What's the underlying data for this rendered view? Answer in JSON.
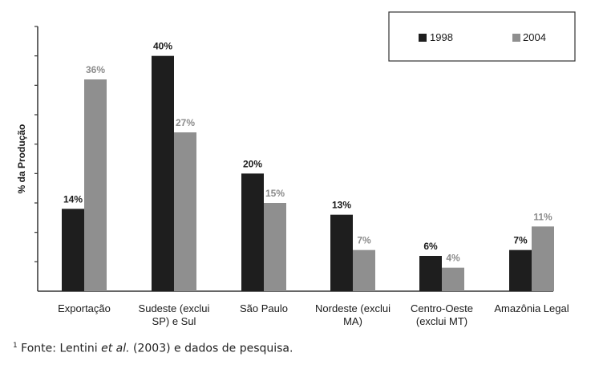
{
  "chart_data": {
    "type": "bar",
    "title": "",
    "xlabel": "",
    "ylabel": "% da Produção",
    "ylim": [
      0,
      45
    ],
    "grid": false,
    "legend_position": "top-right",
    "categories": [
      [
        "Exportação"
      ],
      [
        "Sudeste (exclui",
        "SP) e Sul"
      ],
      [
        "São Paulo"
      ],
      [
        "Nordeste (exclui",
        "MA)"
      ],
      [
        "Centro-Oeste",
        "(exclui MT)"
      ],
      [
        "Amazônia Legal"
      ]
    ],
    "series": [
      {
        "name": "1998",
        "values": [
          14,
          40,
          20,
          13,
          6,
          7
        ],
        "labels": [
          "14%",
          "40%",
          "20%",
          "13%",
          "6%",
          "7%"
        ]
      },
      {
        "name": "2004",
        "values": [
          36,
          27,
          15,
          7,
          4,
          11
        ],
        "labels": [
          "36%",
          "27%",
          "15%",
          "7%",
          "4%",
          "11%"
        ]
      }
    ]
  },
  "colors": {
    "series_1998": "#1e1e1e",
    "series_2004": "#8f8f8f",
    "axis": "#333333"
  },
  "footnote": {
    "marker": "1",
    "prefix": " Fonte: Lentini ",
    "italic": "et al.",
    "suffix": " (2003) e dados de pesquisa."
  }
}
